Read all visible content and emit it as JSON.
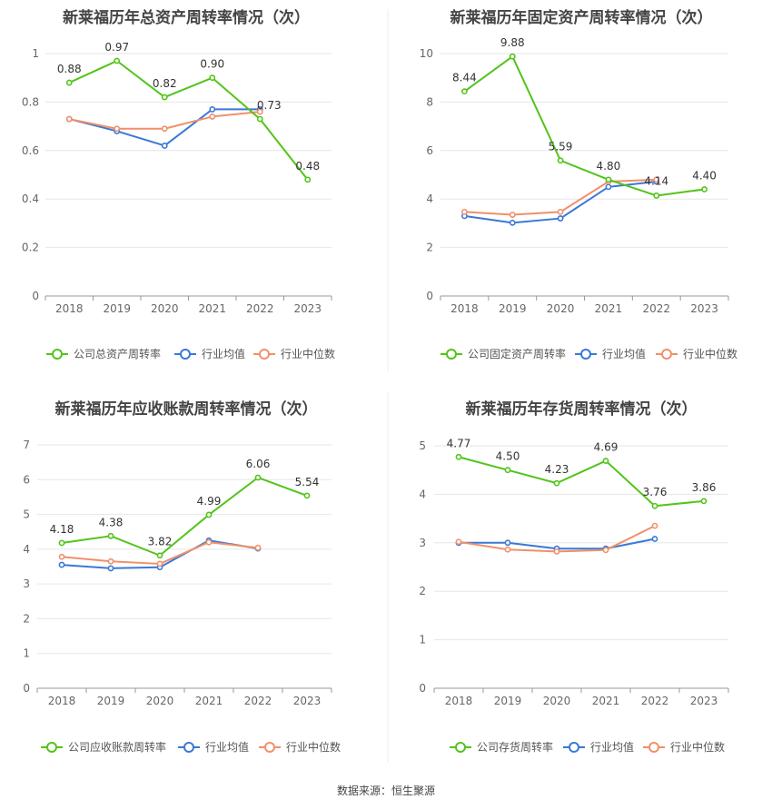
{
  "colors": {
    "company": "#52c41a",
    "avg": "#3a78d8",
    "median": "#f0906a"
  },
  "legend": {
    "avg": "行业均值",
    "median": "行业中位数"
  },
  "chart_data": [
    {
      "type": "line",
      "title": "新莱福历年总资产周转率情况（次）",
      "categories": [
        "2018",
        "2019",
        "2020",
        "2021",
        "2022",
        "2023"
      ],
      "ylim": [
        0,
        1.0
      ],
      "yticks": [
        0,
        0.2,
        0.4,
        0.6,
        0.8,
        1
      ],
      "ytick_labels": [
        "0",
        "0.2",
        "0.4",
        "0.6",
        "0.8",
        "1"
      ],
      "series": [
        {
          "name": "公司总资产周转率",
          "values": [
            0.88,
            0.97,
            0.82,
            0.9,
            0.73,
            0.48
          ],
          "labels": [
            "0.88",
            "0.97",
            "0.82",
            "0.90",
            "0.73",
            "0.48"
          ]
        },
        {
          "name": "行业均值",
          "values": [
            0.73,
            0.68,
            0.62,
            0.77,
            0.77,
            null
          ]
        },
        {
          "name": "行业中位数",
          "values": [
            0.73,
            0.69,
            0.69,
            0.74,
            0.76,
            null
          ]
        }
      ]
    },
    {
      "type": "line",
      "title": "新莱福历年固定资产周转率情况（次）",
      "categories": [
        "2018",
        "2019",
        "2020",
        "2021",
        "2022",
        "2023"
      ],
      "ylim": [
        0,
        10
      ],
      "yticks": [
        0,
        2,
        4,
        6,
        8,
        10
      ],
      "ytick_labels": [
        "0",
        "2",
        "4",
        "6",
        "8",
        "10"
      ],
      "series": [
        {
          "name": "公司固定资产周转率",
          "values": [
            8.44,
            9.88,
            5.59,
            4.8,
            4.14,
            4.4
          ],
          "labels": [
            "8.44",
            "9.88",
            "5.59",
            "4.80",
            "4.14",
            "4.40"
          ]
        },
        {
          "name": "行业均值",
          "values": [
            3.3,
            3.02,
            3.2,
            4.5,
            4.72,
            null
          ]
        },
        {
          "name": "行业中位数",
          "values": [
            3.47,
            3.35,
            3.47,
            4.72,
            4.8,
            null
          ]
        }
      ]
    },
    {
      "type": "line",
      "title": "新莱福历年应收账款周转率情况（次）",
      "categories": [
        "2018",
        "2019",
        "2020",
        "2021",
        "2022",
        "2023"
      ],
      "ylim": [
        0,
        7
      ],
      "yticks": [
        0,
        1,
        2,
        3,
        4,
        5,
        6,
        7
      ],
      "ytick_labels": [
        "0",
        "1",
        "2",
        "3",
        "4",
        "5",
        "6",
        "7"
      ],
      "series": [
        {
          "name": "公司应收账款周转率",
          "values": [
            4.18,
            4.38,
            3.82,
            4.99,
            6.06,
            5.54
          ],
          "labels": [
            "4.18",
            "4.38",
            "3.82",
            "4.99",
            "6.06",
            "5.54"
          ]
        },
        {
          "name": "行业均值",
          "values": [
            3.55,
            3.45,
            3.48,
            4.25,
            4.02,
            null
          ]
        },
        {
          "name": "行业中位数",
          "values": [
            3.78,
            3.65,
            3.58,
            4.2,
            4.04,
            null
          ]
        }
      ]
    },
    {
      "type": "line",
      "title": "新莱福历年存货周转率情况（次）",
      "categories": [
        "2018",
        "2019",
        "2020",
        "2021",
        "2022",
        "2023"
      ],
      "ylim": [
        0,
        5
      ],
      "yticks": [
        0,
        1,
        2,
        3,
        4,
        5
      ],
      "ytick_labels": [
        "0",
        "1",
        "2",
        "3",
        "4",
        "5"
      ],
      "series": [
        {
          "name": "公司存货周转率",
          "values": [
            4.77,
            4.5,
            4.23,
            4.69,
            3.76,
            3.86
          ],
          "labels": [
            "4.77",
            "4.50",
            "4.23",
            "4.69",
            "3.76",
            "3.86"
          ]
        },
        {
          "name": "行业均值",
          "values": [
            3.0,
            3.0,
            2.88,
            2.88,
            3.08,
            null
          ]
        },
        {
          "name": "行业中位数",
          "values": [
            3.02,
            2.86,
            2.82,
            2.85,
            3.35,
            null
          ]
        }
      ]
    }
  ],
  "source": "数据来源：恒生聚源"
}
